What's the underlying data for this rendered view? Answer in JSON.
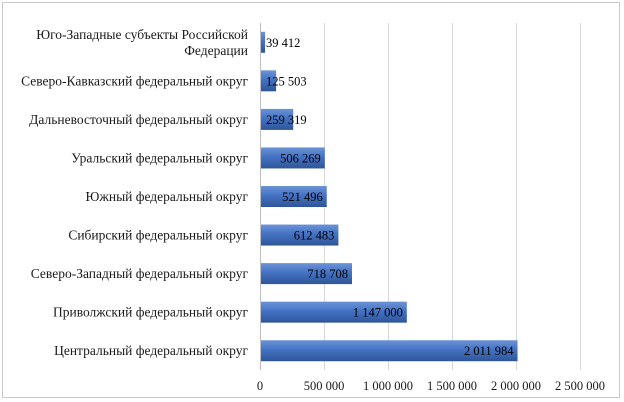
{
  "chart_data": {
    "type": "bar",
    "orientation": "horizontal",
    "categories": [
      [
        "Юго-Западные субъекты Российской",
        "Федерации"
      ],
      [
        "Северо-Кавказский федеральный округ"
      ],
      [
        "Дальневосточный федеральный округ"
      ],
      [
        "Уральский федеральный округ"
      ],
      [
        "Южный федеральный округ"
      ],
      [
        "Сибирский федеральный округ"
      ],
      [
        "Северо-Западный федеральный округ"
      ],
      [
        "Приволжский федеральный округ"
      ],
      [
        "Центральный федеральный округ"
      ]
    ],
    "values": [
      39412,
      125503,
      259319,
      506269,
      521496,
      612483,
      718708,
      1147000,
      2011984
    ],
    "value_labels": [
      "39 412",
      "125 503",
      "259 319",
      "506 269",
      "521 496",
      "612 483",
      "718 708",
      "1 147 000",
      "2 011 984"
    ],
    "xlim": [
      0,
      2500000
    ],
    "xticks": [
      0,
      500000,
      1000000,
      1500000,
      2000000,
      2500000
    ],
    "xtick_labels": [
      "0",
      "500 000",
      "1 000 000",
      "1 500 000",
      "2 000 000",
      "2 500 000"
    ],
    "grid": true,
    "bar_color": "#4472c4",
    "grid_color": "#d9d9d9",
    "title": "",
    "xlabel": "",
    "ylabel": ""
  }
}
